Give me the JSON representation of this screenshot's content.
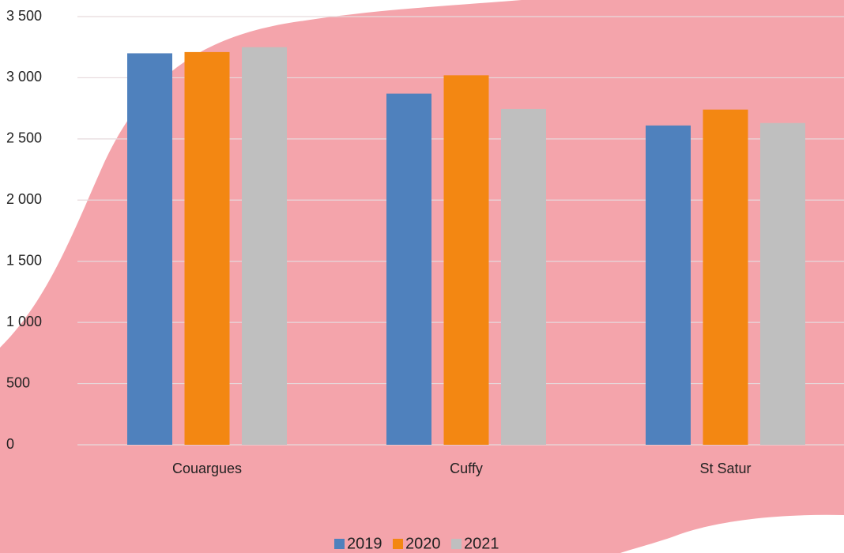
{
  "chart_data": {
    "type": "bar",
    "categories": [
      "Couargues",
      "Cuffy",
      "St Satur"
    ],
    "series": [
      {
        "name": "2019",
        "color": "#4f81bd",
        "values": [
          3200,
          2870,
          2610
        ]
      },
      {
        "name": "2020",
        "color": "#f38712",
        "values": [
          3210,
          3020,
          2740
        ]
      },
      {
        "name": "2021",
        "color": "#bfbfbf",
        "values": [
          3250,
          2745,
          2630
        ]
      }
    ],
    "ylim": [
      0,
      3500
    ],
    "yticks": [
      0,
      500,
      {
        "value": 1000,
        "label": "1 000"
      },
      {
        "value": 1500,
        "label": "1 500"
      },
      {
        "value": 2000,
        "label": "2 000"
      },
      {
        "value": 2500,
        "label": "2 500"
      },
      {
        "value": 3000,
        "label": "3 000"
      },
      {
        "value": 3500,
        "label": "3 500"
      }
    ],
    "grid": true,
    "legend": "bottom"
  }
}
